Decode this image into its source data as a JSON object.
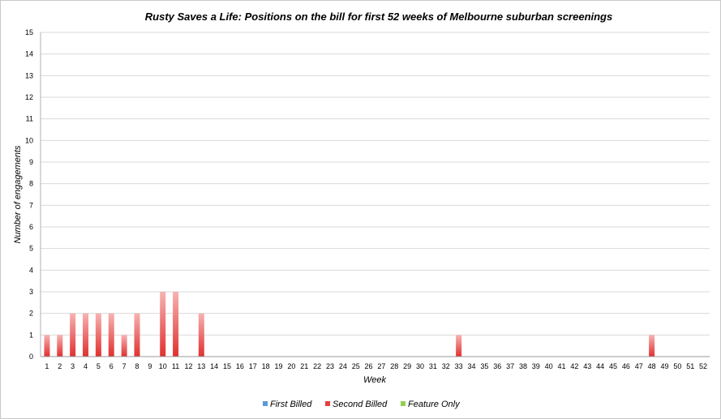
{
  "chart_data": {
    "type": "bar",
    "title": "Rusty Saves a Life: Positions on the bill for first 52 weeks of Melbourne suburban screenings",
    "xlabel": "Week",
    "ylabel": "Number of engagements",
    "ylim": [
      0,
      15
    ],
    "yticks": [
      "0",
      "1",
      "2",
      "3",
      "4",
      "5",
      "6",
      "7",
      "8",
      "9",
      "10",
      "11",
      "12",
      "13",
      "14",
      "15"
    ],
    "grid": true,
    "legend_position": "bottom",
    "categories": [
      "1",
      "2",
      "3",
      "4",
      "5",
      "6",
      "7",
      "8",
      "9",
      "10",
      "11",
      "12",
      "13",
      "14",
      "15",
      "16",
      "17",
      "18",
      "19",
      "20",
      "21",
      "22",
      "23",
      "24",
      "25",
      "26",
      "27",
      "28",
      "29",
      "30",
      "31",
      "32",
      "33",
      "34",
      "35",
      "36",
      "37",
      "38",
      "39",
      "40",
      "41",
      "42",
      "43",
      "44",
      "45",
      "46",
      "47",
      "48",
      "49",
      "50",
      "51",
      "52"
    ],
    "series": [
      {
        "name": "First Billed",
        "color": "#5b9bd5",
        "values": [
          0,
          0,
          0,
          0,
          0,
          0,
          0,
          0,
          0,
          0,
          0,
          0,
          0,
          0,
          0,
          0,
          0,
          0,
          0,
          0,
          0,
          0,
          0,
          0,
          0,
          0,
          0,
          0,
          0,
          0,
          0,
          0,
          0,
          0,
          0,
          0,
          0,
          0,
          0,
          0,
          0,
          0,
          0,
          0,
          0,
          0,
          0,
          0,
          0,
          0,
          0,
          0
        ]
      },
      {
        "name": "Second Billed",
        "color": "#e8403f",
        "values": [
          1,
          1,
          2,
          2,
          2,
          2,
          1,
          2,
          0,
          3,
          3,
          0,
          2,
          0,
          0,
          0,
          0,
          0,
          0,
          0,
          0,
          0,
          0,
          0,
          0,
          0,
          0,
          0,
          0,
          0,
          0,
          0,
          1,
          0,
          0,
          0,
          0,
          0,
          0,
          0,
          0,
          0,
          0,
          0,
          0,
          0,
          0,
          1,
          0,
          0,
          0,
          0
        ]
      },
      {
        "name": "Feature Only",
        "color": "#92d050",
        "values": [
          0,
          0,
          0,
          0,
          0,
          0,
          0,
          0,
          0,
          0,
          0,
          0,
          0,
          0,
          0,
          0,
          0,
          0,
          0,
          0,
          0,
          0,
          0,
          0,
          0,
          0,
          0,
          0,
          0,
          0,
          0,
          0,
          0,
          0,
          0,
          0,
          0,
          0,
          0,
          0,
          0,
          0,
          0,
          0,
          0,
          0,
          0,
          0,
          0,
          0,
          0,
          0
        ]
      }
    ]
  }
}
